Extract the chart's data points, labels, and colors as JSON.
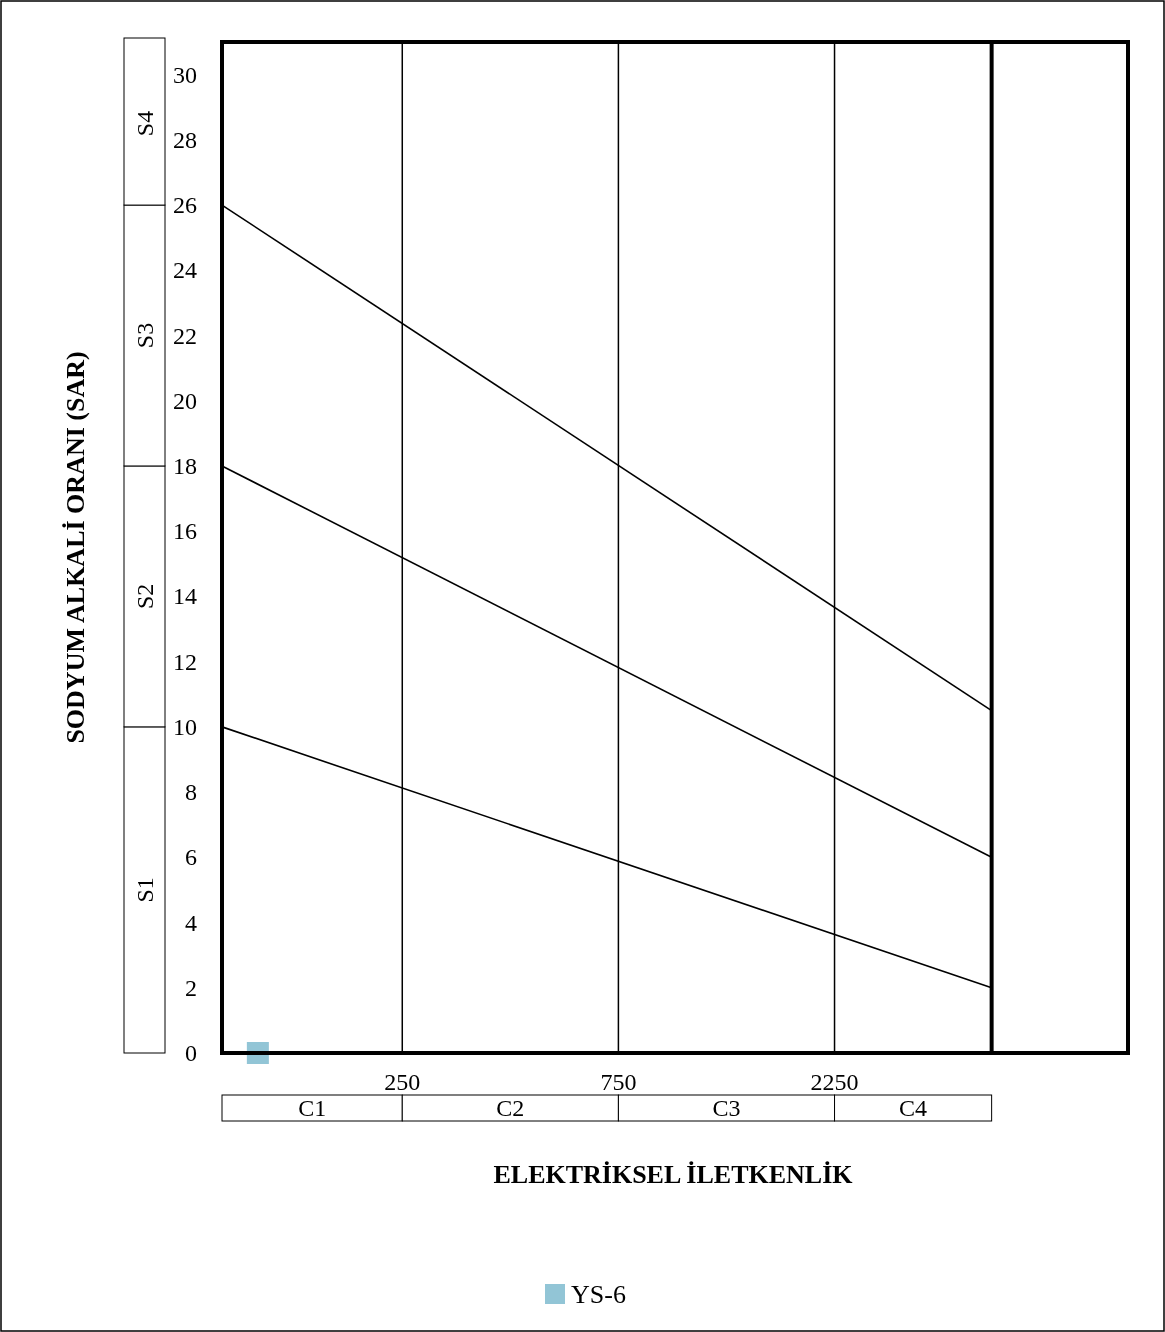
{
  "chart_data": {
    "type": "scatter",
    "xlabel": "ELEKTRİKSEL İLETKENLİK",
    "ylabel": "SODYUM ALKALİ ORANI (SAR)",
    "log": "x",
    "xlim": [
      100,
      10000
    ],
    "xticks": [
      250,
      750,
      2250
    ],
    "ylim": [
      0,
      31
    ],
    "yticks": [
      0,
      2,
      4,
      6,
      8,
      10,
      12,
      14,
      16,
      18,
      20,
      22,
      24,
      26,
      28,
      30
    ],
    "grid": "x",
    "legend": "bottom",
    "series": [
      {
        "type": "line",
        "color": "#000000",
        "marker": "none",
        "x": [
          100,
          5000
        ],
        "values": [
          10,
          2
        ]
      },
      {
        "type": "line",
        "color": "#000000",
        "marker": "none",
        "x": [
          100,
          5000
        ],
        "values": [
          18,
          6
        ]
      },
      {
        "type": "line",
        "color": "#000000",
        "marker": "none",
        "x": [
          100,
          5000
        ],
        "values": [
          26,
          10.5
        ]
      },
      {
        "name": "YS-6",
        "color": "#92c5d6",
        "marker": "square",
        "x": [
          120
        ],
        "values": [
          0
        ]
      }
    ],
    "ref_lines": [
      {
        "axis": "x",
        "value": 5000
      }
    ],
    "annotations": [
      "S1",
      "S2",
      "S3",
      "S4",
      "C1",
      "C2",
      "C3",
      "C4"
    ]
  }
}
